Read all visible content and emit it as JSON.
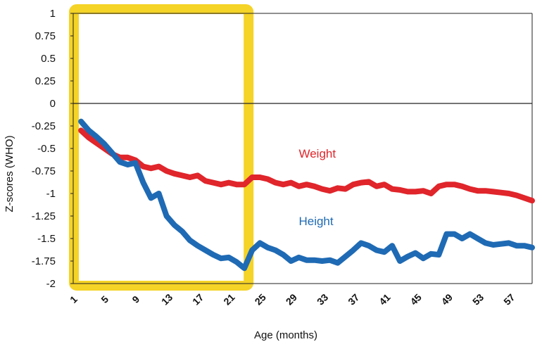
{
  "chart_data": {
    "type": "line",
    "xlabel": "Age (months)",
    "ylabel": "Z-scores (WHO)",
    "xlim": [
      1,
      60
    ],
    "ylim": [
      -2,
      1
    ],
    "y_ticks": [
      1,
      0.75,
      0.5,
      0.25,
      0,
      -0.25,
      -0.5,
      -0.75,
      -1,
      -1.25,
      -1.5,
      -1.75,
      -2
    ],
    "y_tick_labels": [
      "1",
      "0.75",
      "0.5",
      "0.25",
      "0",
      "-0.25",
      "-0.5",
      "-0.75",
      "-1",
      "-1.25",
      "-1.5",
      "-1.75",
      "-2"
    ],
    "x_tick_labels": [
      "1",
      "5",
      "9",
      "13",
      "17",
      "21",
      "25",
      "29",
      "33",
      "37",
      "41",
      "45",
      "49",
      "53",
      "57"
    ],
    "grid": false,
    "zero_line": true,
    "highlight": {
      "x_range": [
        1,
        24
      ],
      "color": "#f5d327"
    },
    "series": [
      {
        "name": "Weight",
        "color": "#e0252b",
        "label_at": [
          30,
          -0.6
        ],
        "x": [
          2,
          3,
          4,
          5,
          6,
          7,
          8,
          9,
          10,
          11,
          12,
          13,
          14,
          15,
          16,
          17,
          18,
          19,
          20,
          21,
          22,
          23,
          24,
          25,
          26,
          27,
          28,
          29,
          30,
          31,
          32,
          33,
          34,
          35,
          36,
          37,
          38,
          39,
          40,
          41,
          42,
          43,
          44,
          45,
          46,
          47,
          48,
          49,
          50,
          51,
          52,
          53,
          54,
          55,
          56,
          57,
          58,
          59,
          60
        ],
        "values": [
          -0.3,
          -0.38,
          -0.44,
          -0.5,
          -0.56,
          -0.6,
          -0.6,
          -0.63,
          -0.7,
          -0.72,
          -0.7,
          -0.75,
          -0.78,
          -0.8,
          -0.82,
          -0.8,
          -0.86,
          -0.88,
          -0.9,
          -0.88,
          -0.9,
          -0.9,
          -0.82,
          -0.82,
          -0.84,
          -0.88,
          -0.9,
          -0.88,
          -0.92,
          -0.9,
          -0.92,
          -0.95,
          -0.97,
          -0.94,
          -0.95,
          -0.9,
          -0.88,
          -0.87,
          -0.92,
          -0.9,
          -0.95,
          -0.96,
          -0.98,
          -0.98,
          -0.97,
          -1.0,
          -0.92,
          -0.9,
          -0.9,
          -0.92,
          -0.95,
          -0.97,
          -0.97,
          -0.98,
          -0.99,
          -1.0,
          -1.02,
          -1.05,
          -1.08
        ]
      },
      {
        "name": "Height",
        "color": "#1f6ab4",
        "label_at": [
          30,
          -1.35
        ],
        "x": [
          2,
          3,
          4,
          5,
          6,
          7,
          8,
          9,
          10,
          11,
          12,
          13,
          14,
          15,
          16,
          17,
          18,
          19,
          20,
          21,
          22,
          23,
          24,
          25,
          26,
          27,
          28,
          29,
          30,
          31,
          32,
          33,
          34,
          35,
          36,
          37,
          38,
          39,
          40,
          41,
          42,
          43,
          44,
          45,
          46,
          47,
          48,
          49,
          50,
          51,
          52,
          53,
          54,
          55,
          56,
          57,
          58,
          59,
          60
        ],
        "values": [
          -0.2,
          -0.3,
          -0.37,
          -0.45,
          -0.55,
          -0.65,
          -0.68,
          -0.66,
          -0.88,
          -1.05,
          -1.0,
          -1.25,
          -1.35,
          -1.42,
          -1.52,
          -1.58,
          -1.63,
          -1.68,
          -1.72,
          -1.71,
          -1.76,
          -1.83,
          -1.63,
          -1.55,
          -1.6,
          -1.63,
          -1.68,
          -1.75,
          -1.71,
          -1.74,
          -1.74,
          -1.75,
          -1.74,
          -1.77,
          -1.7,
          -1.63,
          -1.55,
          -1.58,
          -1.63,
          -1.65,
          -1.58,
          -1.75,
          -1.7,
          -1.66,
          -1.72,
          -1.67,
          -1.68,
          -1.45,
          -1.45,
          -1.5,
          -1.45,
          -1.5,
          -1.55,
          -1.57,
          -1.56,
          -1.55,
          -1.58,
          -1.58,
          -1.6
        ]
      }
    ]
  }
}
